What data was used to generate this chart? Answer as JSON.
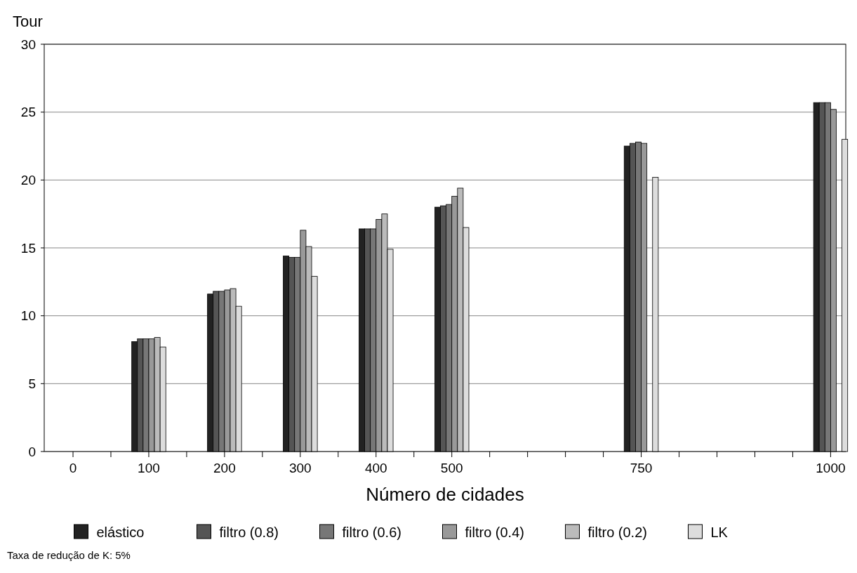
{
  "chart_data": {
    "type": "bar",
    "ylabel": "Tour",
    "xlabel": "Número de cidades",
    "x": [
      100,
      200,
      300,
      400,
      500,
      750,
      1000
    ],
    "xlim": [
      -38,
      1020
    ],
    "xticks": [
      0,
      {
        "value": 50,
        "label": null
      },
      100,
      {
        "value": 150,
        "label": null
      },
      200,
      {
        "value": 250,
        "label": null
      },
      300,
      {
        "value": 350,
        "label": null
      },
      400,
      {
        "value": 450,
        "label": null
      },
      500,
      {
        "value": 550,
        "label": null
      },
      {
        "value": 600,
        "label": null
      },
      {
        "value": 650,
        "label": null
      },
      {
        "value": 700,
        "label": null
      },
      750,
      {
        "value": 800,
        "label": null
      },
      {
        "value": 850,
        "label": null
      },
      {
        "value": 900,
        "label": null
      },
      {
        "value": 950,
        "label": null
      },
      1000
    ],
    "ylim": [
      0,
      30
    ],
    "yticks": [
      0,
      5,
      10,
      15,
      20,
      25,
      30
    ],
    "grid": "y",
    "legend": "bottom",
    "series": [
      {
        "name": "elástico",
        "color": "#222222",
        "values": [
          8.1,
          11.6,
          14.4,
          16.4,
          18.0,
          22.5,
          25.7
        ]
      },
      {
        "name": "filtro (0.8)",
        "color": "#555555",
        "values": [
          8.3,
          11.8,
          14.3,
          16.4,
          18.1,
          22.7,
          25.7
        ]
      },
      {
        "name": "filtro (0.6)",
        "color": "#777777",
        "values": [
          8.3,
          11.8,
          14.3,
          16.4,
          18.2,
          22.8,
          25.7
        ]
      },
      {
        "name": "filtro (0.4)",
        "color": "#999999",
        "values": [
          8.3,
          11.9,
          16.3,
          17.1,
          18.8,
          22.7,
          25.2
        ]
      },
      {
        "name": "filtro (0.2)",
        "color": "#bbbbbb",
        "values": [
          8.4,
          12.0,
          15.1,
          17.5,
          19.4,
          null,
          null
        ]
      },
      {
        "name": "LK",
        "color": "#dddddd",
        "values": [
          7.7,
          10.7,
          12.9,
          14.9,
          16.5,
          20.2,
          23.0
        ]
      }
    ],
    "annotations": [
      "Taxa de redução de K: 5%"
    ]
  }
}
